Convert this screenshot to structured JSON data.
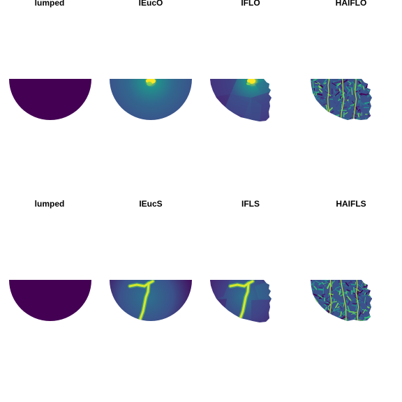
{
  "chart_data": {
    "type": "heatmap",
    "colormap": "viridis",
    "grid": "2x4 small multiples",
    "panels": [
      {
        "title": "lumped",
        "shape": "half-disk",
        "pattern": "uniform",
        "fill": "#440154"
      },
      {
        "title": "IEucO",
        "shape": "half-disk",
        "pattern": "radial-from-outlet",
        "outlet": "top-center"
      },
      {
        "title": "IFLO",
        "shape": "catchment",
        "pattern": "patchy-from-outlet",
        "outlet": "top-right"
      },
      {
        "title": "HAIFLO",
        "shape": "catchment",
        "pattern": "hillslope-texture"
      },
      {
        "title": "lumped",
        "shape": "half-disk",
        "pattern": "uniform",
        "fill": "#440154"
      },
      {
        "title": "IEucS",
        "shape": "half-disk",
        "pattern": "distance-to-stream",
        "stream": true
      },
      {
        "title": "IFLS",
        "shape": "catchment",
        "pattern": "distance-to-stream",
        "stream": true
      },
      {
        "title": "HAIFLS",
        "shape": "catchment",
        "pattern": "hillslope-texture"
      }
    ],
    "colors": {
      "low": "#440154",
      "mid_low": "#3b528b",
      "mid": "#21918c",
      "mid_high": "#5ec962",
      "high": "#fde725",
      "highlight": "#d6e82a"
    }
  }
}
